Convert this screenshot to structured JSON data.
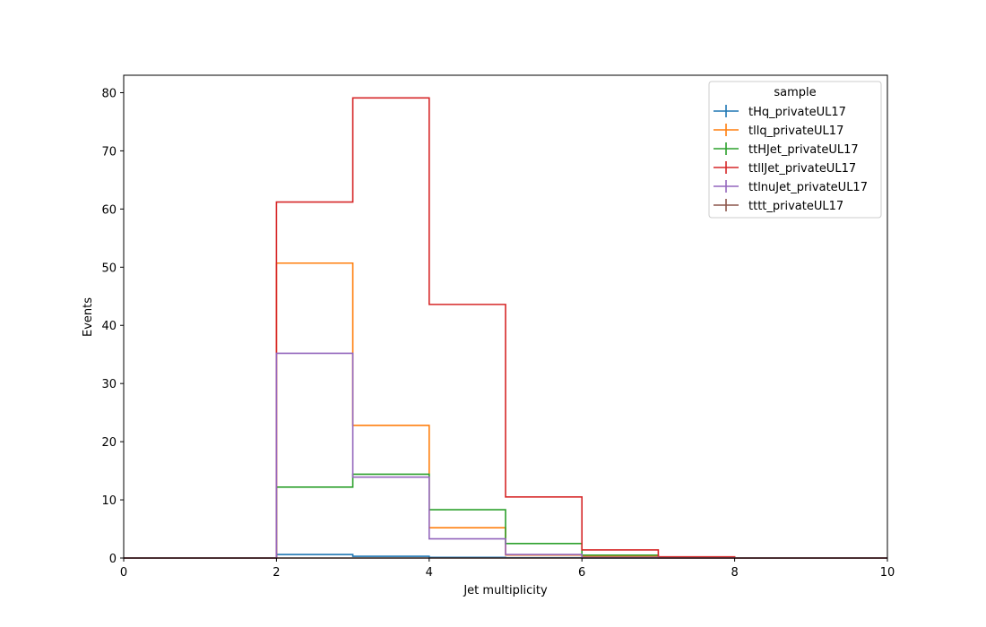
{
  "chart_data": {
    "type": "step",
    "xlabel": "Jet multiplicity",
    "ylabel": "Events",
    "xlim": [
      0,
      10
    ],
    "ylim": [
      0,
      83
    ],
    "xticks": [
      0,
      2,
      4,
      6,
      8,
      10
    ],
    "yticks": [
      0,
      10,
      20,
      30,
      40,
      50,
      60,
      70,
      80
    ],
    "grid": false,
    "legend": {
      "title": "sample",
      "placement": "top-right"
    },
    "bin_edges": [
      0,
      1,
      2,
      3,
      4,
      5,
      6,
      7,
      8,
      9,
      10
    ],
    "series": [
      {
        "name": "tHq_privateUL17",
        "color": "#1f77b4",
        "values": [
          0,
          0,
          0.6,
          0.3,
          0.1,
          0.05,
          0,
          0,
          0,
          0
        ]
      },
      {
        "name": "tllq_privateUL17",
        "color": "#ff7f0e",
        "values": [
          0,
          0,
          50.7,
          22.8,
          5.2,
          0.5,
          0.3,
          0,
          0,
          0
        ]
      },
      {
        "name": "ttHJet_privateUL17",
        "color": "#2ca02c",
        "values": [
          0,
          0,
          12.2,
          14.4,
          8.3,
          2.5,
          0.5,
          0.1,
          0,
          0
        ]
      },
      {
        "name": "ttllJet_privateUL17",
        "color": "#d62728",
        "values": [
          0,
          0,
          61.2,
          79.1,
          43.6,
          10.5,
          1.4,
          0.2,
          0,
          0
        ]
      },
      {
        "name": "ttlnuJet_privateUL17",
        "color": "#9467bd",
        "values": [
          0,
          0,
          35.2,
          13.9,
          3.3,
          0.6,
          0.1,
          0,
          0,
          0
        ]
      },
      {
        "name": "tttt_privateUL17",
        "color": "#8c564b",
        "values": [
          0,
          0,
          0,
          0,
          0,
          0,
          0,
          0,
          0,
          0
        ]
      }
    ]
  }
}
